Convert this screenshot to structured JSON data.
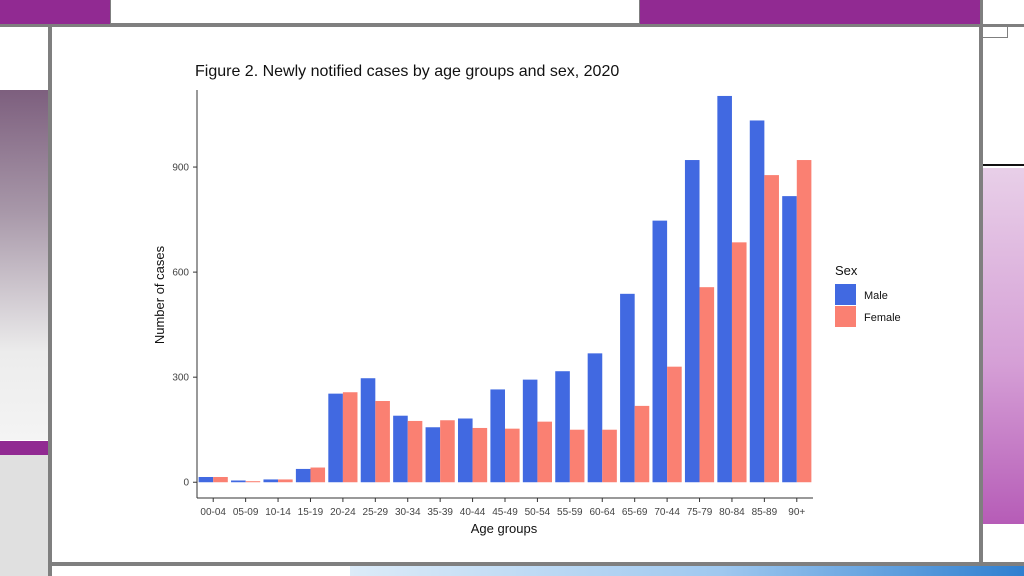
{
  "colors": {
    "male": "#4169E1",
    "female": "#FA8072",
    "frame": "#7f7f7f",
    "purple": "#912a92",
    "mauve": "#bdb1bf"
  },
  "chart_data": {
    "type": "bar",
    "title": "Figure 2. Newly notified cases by age groups and sex, 2020",
    "xlabel": "Age groups",
    "ylabel": "Number of cases",
    "ylim": [
      -45,
      1120
    ],
    "yticks": [
      0,
      300,
      600,
      900
    ],
    "grid": false,
    "legend": {
      "title": "Sex",
      "placement": "right"
    },
    "categories": [
      "00-04",
      "05-09",
      "10-14",
      "15-19",
      "20-24",
      "25-29",
      "30-34",
      "35-39",
      "40-44",
      "45-49",
      "50-54",
      "55-59",
      "60-64",
      "65-69",
      "70-44",
      "75-79",
      "80-84",
      "85-89",
      "90+"
    ],
    "series": [
      {
        "name": "Male",
        "values": [
          15,
          5,
          8,
          38,
          253,
          297,
          190,
          157,
          182,
          265,
          293,
          317,
          368,
          538,
          747,
          920,
          1103,
          1033,
          817
        ]
      },
      {
        "name": "Female",
        "values": [
          15,
          3,
          8,
          42,
          257,
          232,
          175,
          177,
          155,
          153,
          173,
          150,
          150,
          218,
          330,
          557,
          685,
          877,
          920
        ]
      }
    ]
  }
}
